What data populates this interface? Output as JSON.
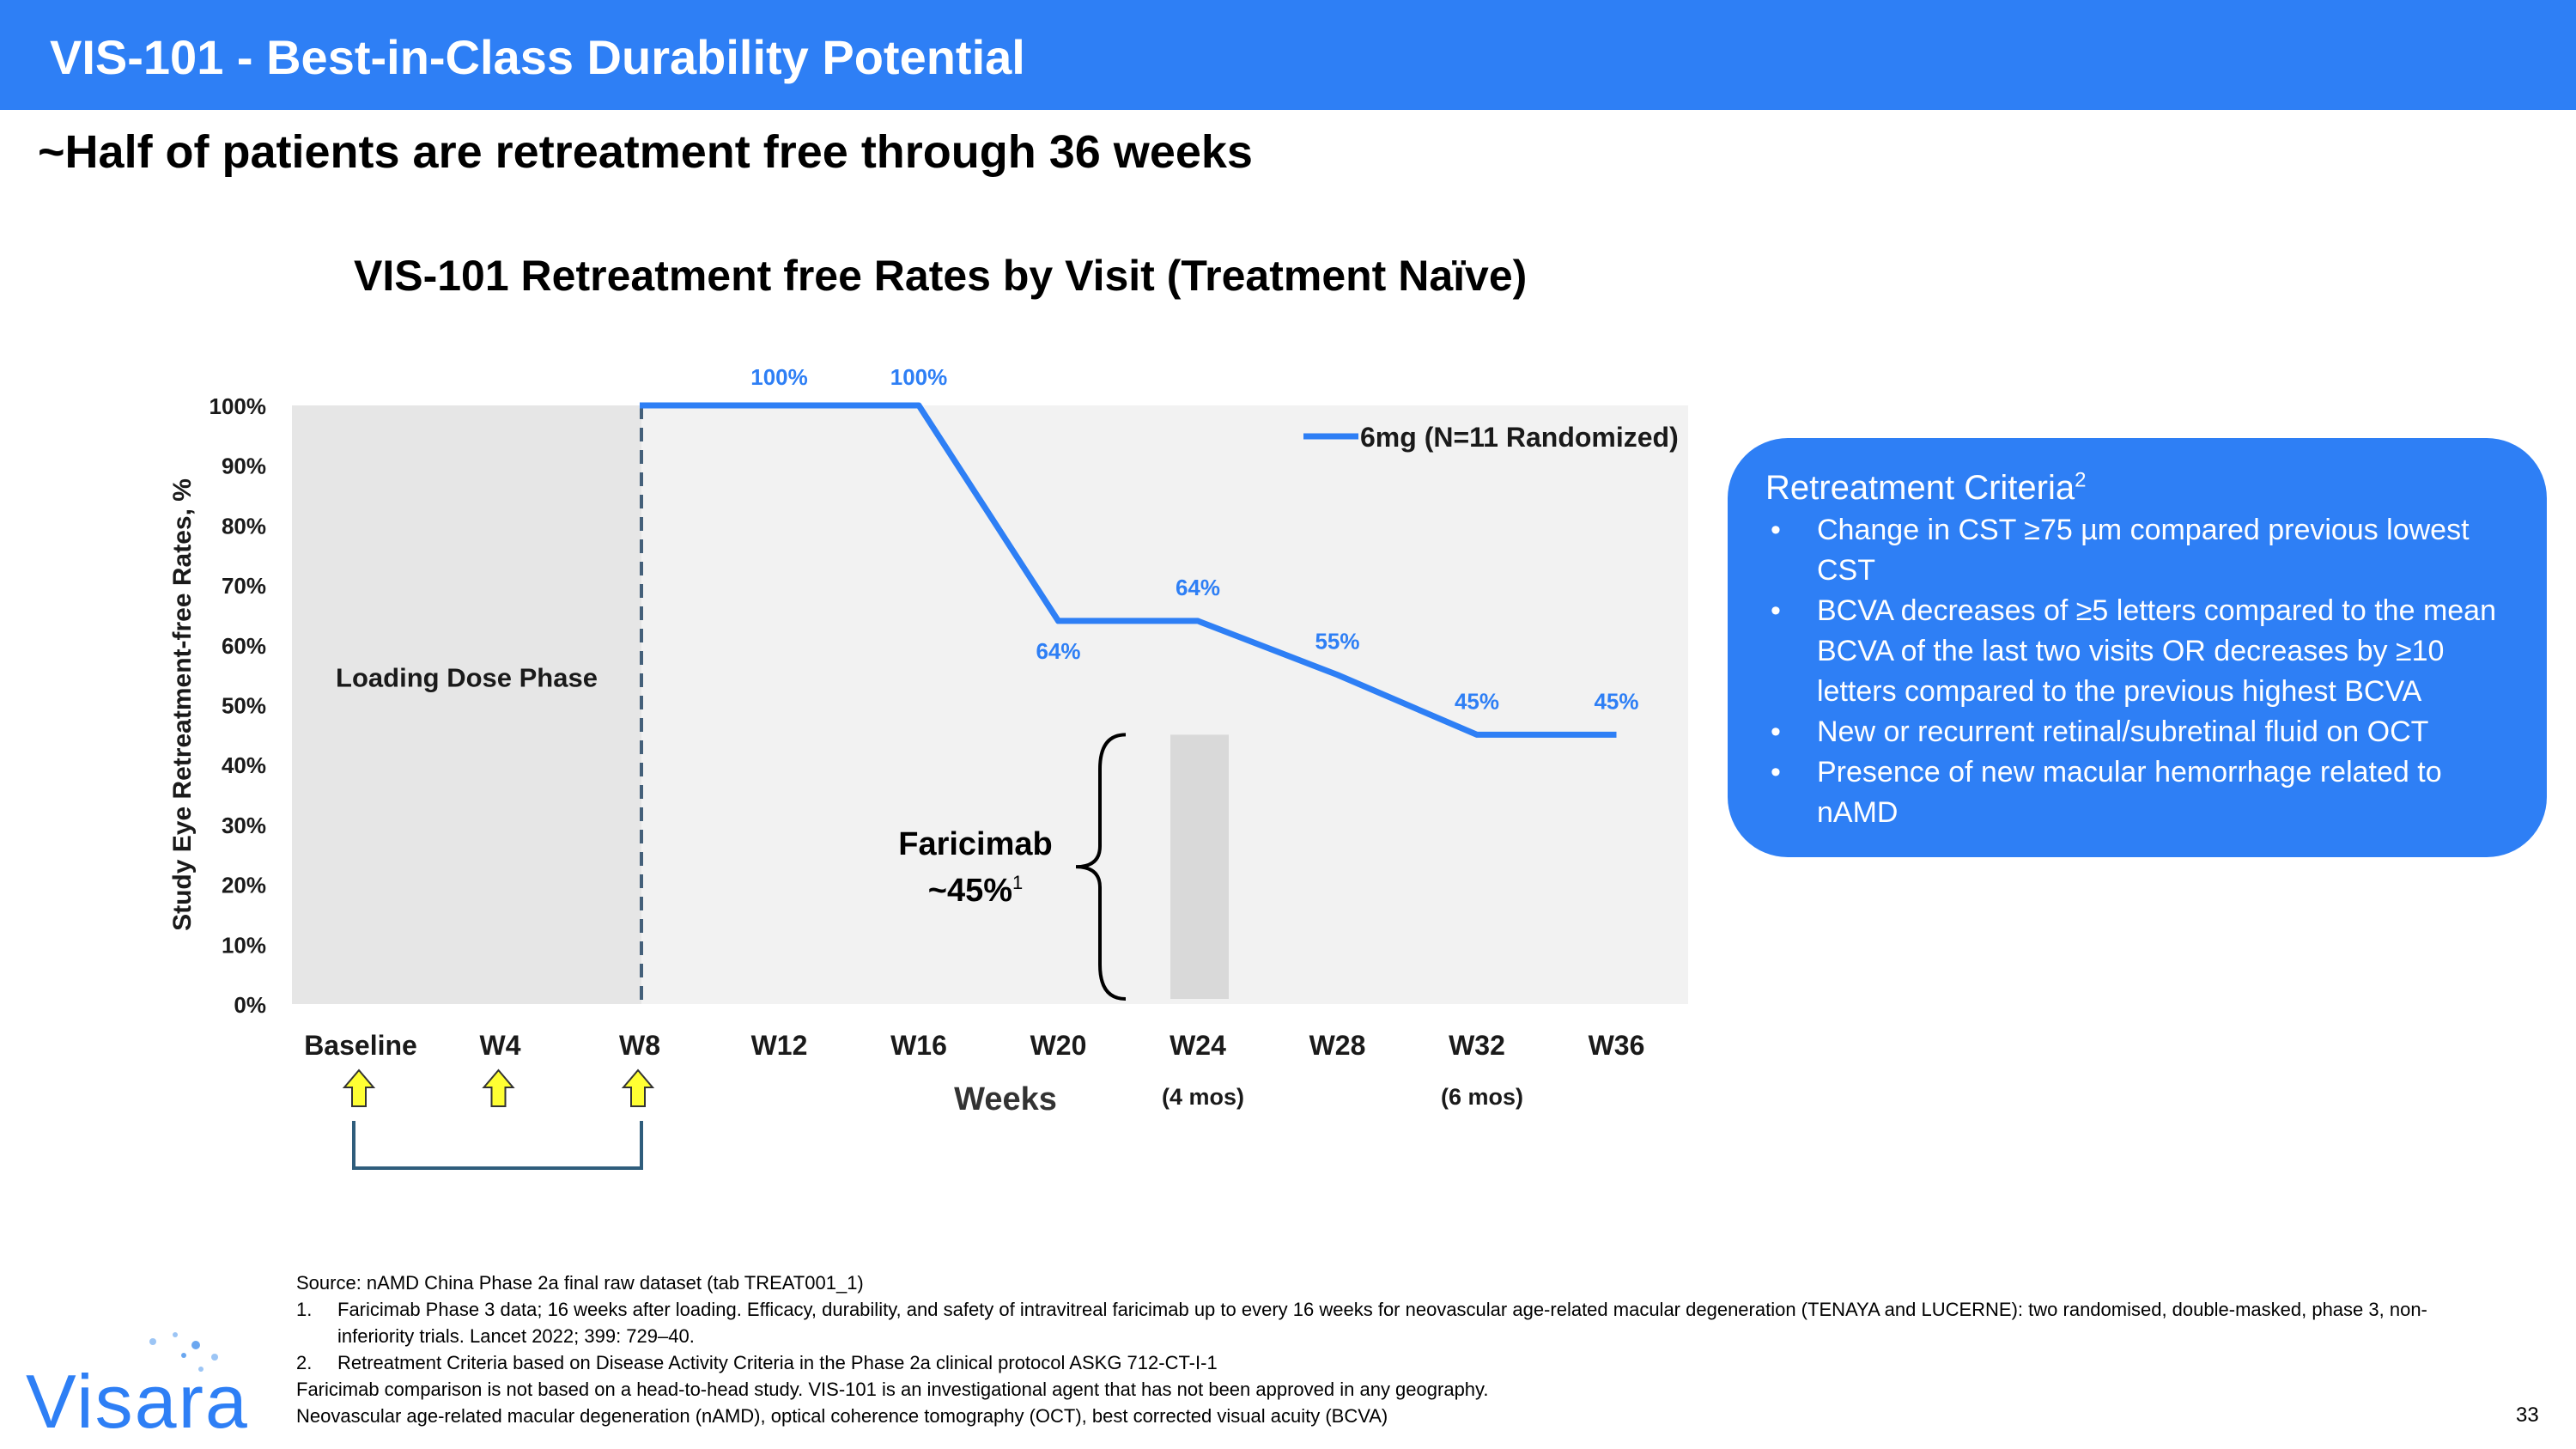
{
  "header": {
    "title": "VIS-101 - Best-in-Class Durability Potential",
    "subtitle": "~Half of patients are retreatment free through 36 weeks"
  },
  "chart_data": {
    "type": "line",
    "title": "VIS-101 Retreatment free Rates by Visit (Treatment Naïve)",
    "xlabel": "Weeks",
    "ylabel": "Study Eye Retreatment-free Rates, %",
    "ylim": [
      0,
      100
    ],
    "y_ticks": [
      "0%",
      "10%",
      "20%",
      "30%",
      "40%",
      "50%",
      "60%",
      "70%",
      "80%",
      "90%",
      "100%"
    ],
    "categories": [
      "Baseline",
      "W4",
      "W8",
      "W12",
      "W16",
      "W20",
      "W24",
      "W28",
      "W32",
      "W36"
    ],
    "series": [
      {
        "name": "6mg (N=11 Randomized)",
        "color": "#2e7ff5",
        "x": [
          "W8",
          "W12",
          "W16",
          "W20",
          "W24",
          "W28",
          "W32",
          "W36"
        ],
        "values": [
          100,
          100,
          100,
          64,
          64,
          55,
          45,
          45
        ]
      }
    ],
    "data_labels": [
      {
        "x": "W12",
        "value": 100,
        "text": "100%"
      },
      {
        "x": "W16",
        "value": 100,
        "text": "100%"
      },
      {
        "x": "W20",
        "value": 64,
        "text": "64%"
      },
      {
        "x": "W24",
        "value": 64,
        "text": "64%"
      },
      {
        "x": "W28",
        "value": 55,
        "text": "55%"
      },
      {
        "x": "W32",
        "value": 45,
        "text": "45%"
      },
      {
        "x": "W36",
        "value": 45,
        "text": "45%"
      }
    ],
    "shaded_region": {
      "label": "Loading Dose Phase",
      "from": "Baseline",
      "to": "W8",
      "color": "#e6e6e6"
    },
    "comparator": {
      "label_line1": "Faricimab",
      "label_line2": "~45%",
      "footnote_ref": "1",
      "at": "W24",
      "value": 45,
      "color": "#d9d9d9"
    },
    "annotations": [
      {
        "at": "W24",
        "text": "(4 mos)"
      },
      {
        "at": "W32",
        "text": "(6 mos)"
      }
    ],
    "dose_markers": [
      "Baseline",
      "W4",
      "W8"
    ],
    "legend_position": "top-right",
    "grid": false
  },
  "criteria": {
    "title": "Retreatment Criteria",
    "title_ref": "2",
    "bullet_char": "•",
    "items": [
      "Change in CST ≥75 µm compared previous lowest CST",
      "BCVA decreases of  ≥5 letters compared to the mean BCVA of the last two visits OR decreases by ≥10 letters compared to the previous highest BCVA",
      "New or recurrent retinal/subretinal fluid on OCT",
      "Presence of new macular hemorrhage related to nAMD"
    ]
  },
  "footnotes": {
    "source": "Source:  nAMD China Phase 2a final raw dataset (tab TREAT001_1)",
    "note1_num": "1.",
    "note1": "Faricimab Phase 3 data; 16 weeks after loading. Efficacy, durability, and safety of intravitreal faricimab up to every 16 weeks for neovascular age-related macular degeneration (TENAYA and LUCERNE): two randomised, double-masked, phase 3, non-inferiority trials. Lancet 2022; 399: 729–40.",
    "note2_num": "2.",
    "note2": "Retreatment Criteria based on Disease Activity Criteria in the Phase 2a clinical protocol ASKG 712-CT-I-1",
    "disclaimer": "Faricimab comparison is not based on a head-to-head study. VIS-101 is an investigational agent that has not been approved in any geography.",
    "abbreviations": "Neovascular age-related macular degeneration (nAMD), optical coherence tomography (OCT), best corrected visual acuity (BCVA)"
  },
  "page_number": "33",
  "logo": {
    "text": "Visara",
    "color": "#2e7ff5"
  }
}
